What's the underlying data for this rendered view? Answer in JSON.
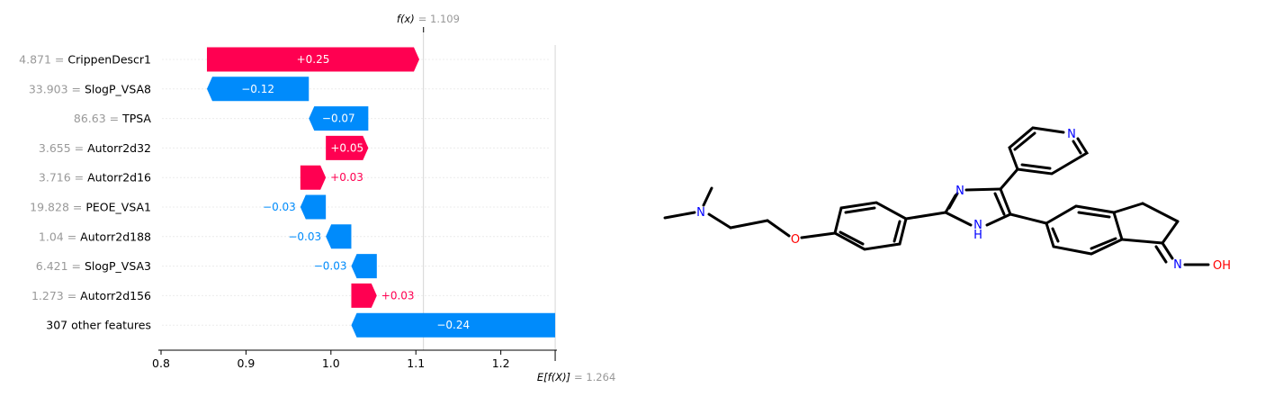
{
  "chart_data": {
    "type": "waterfall",
    "f_x": {
      "label": "f(x)",
      "value_text": "= 1.109",
      "value": 1.109
    },
    "expected": {
      "label": "E[f(X)]",
      "value_text": "= 1.264",
      "value": 1.264
    },
    "xlim": [
      0.8,
      1.265
    ],
    "x_ticks": [
      "0.8",
      "0.9",
      "1.0",
      "1.1",
      "1.2"
    ],
    "features": [
      {
        "value": "4.871 =",
        "name": "CrippenDescr1",
        "contribution": 0.25,
        "label": "+0.25"
      },
      {
        "value": "33.903 =",
        "name": "SlogP_VSA8",
        "contribution": -0.12,
        "label": "−0.12"
      },
      {
        "value": "86.63 =",
        "name": "TPSA",
        "contribution": -0.07,
        "label": "−0.07"
      },
      {
        "value": "3.655 =",
        "name": "Autorr2d32",
        "contribution": 0.05,
        "label": "+0.05"
      },
      {
        "value": "3.716 =",
        "name": "Autorr2d16",
        "contribution": 0.03,
        "label": "+0.03"
      },
      {
        "value": "19.828 =",
        "name": "PEOE_VSA1",
        "contribution": -0.03,
        "label": "−0.03"
      },
      {
        "value": "1.04 =",
        "name": "Autorr2d188",
        "contribution": -0.03,
        "label": "−0.03"
      },
      {
        "value": "6.421 =",
        "name": "SlogP_VSA3",
        "contribution": -0.03,
        "label": "−0.03"
      },
      {
        "value": "1.273 =",
        "name": "Autorr2d156",
        "contribution": 0.03,
        "label": "+0.03"
      },
      {
        "value": "",
        "name": "307 other features",
        "contribution": -0.24,
        "label": "−0.24"
      }
    ],
    "colors": {
      "positive": "#ff0051",
      "negative": "#008bfb"
    }
  },
  "molecule": {
    "atom_labels": [
      "N",
      "O",
      "N",
      "N",
      "H",
      "N",
      "N",
      "OH"
    ],
    "colors": {
      "bond": "#000000",
      "nitrogen": "#0000ff",
      "oxygen": "#ff0000"
    }
  }
}
